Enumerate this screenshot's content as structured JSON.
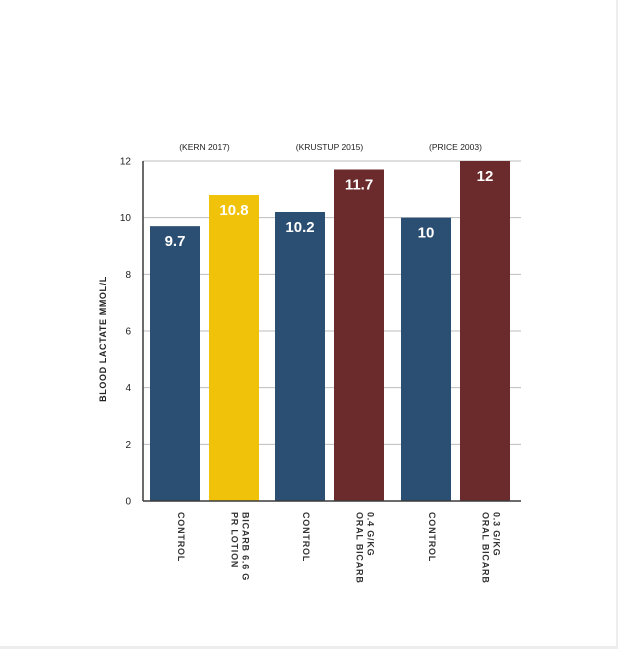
{
  "chart_data": {
    "type": "bar",
    "title": "",
    "ylabel": "BLOOD LACTATE MMOL/L",
    "xlabel": "",
    "ylim": [
      0,
      12
    ],
    "yticks": [
      0,
      2,
      4,
      6,
      8,
      10,
      12
    ],
    "grid": true,
    "legend": "none",
    "groups": [
      {
        "label": "(KERN 2017)",
        "bars": [
          0,
          1
        ]
      },
      {
        "label": "(KRUSTUP 2015)",
        "bars": [
          2,
          3
        ]
      },
      {
        "label": "(PRICE 2003)",
        "bars": [
          4,
          5
        ]
      }
    ],
    "bars": [
      {
        "label_lines": [
          "CONTROL"
        ],
        "value": 9.7,
        "value_label": "9.7",
        "color": "#2b4f72"
      },
      {
        "label_lines": [
          "PR LOTION",
          "BICARB 6.6 G"
        ],
        "value": 10.8,
        "value_label": "10.8",
        "color": "#f0c20a"
      },
      {
        "label_lines": [
          "CONTROL"
        ],
        "value": 10.2,
        "value_label": "10.2",
        "color": "#2b4f72"
      },
      {
        "label_lines": [
          "ORAL BICARB",
          "0.4 G/KG"
        ],
        "value": 11.7,
        "value_label": "11.7",
        "color": "#6b2a2b"
      },
      {
        "label_lines": [
          "CONTROL"
        ],
        "value": 10,
        "value_label": "10",
        "color": "#2b4f72"
      },
      {
        "label_lines": [
          "ORAL BICARB",
          "0.3 G/KG"
        ],
        "value": 12,
        "value_label": "12",
        "color": "#6b2a2b"
      }
    ],
    "colors": {
      "control": "#2b4f72",
      "lotion": "#f0c20a",
      "oral": "#6b2a2b",
      "grid": "#bdbdbd",
      "axis": "#3a3a3a"
    }
  }
}
